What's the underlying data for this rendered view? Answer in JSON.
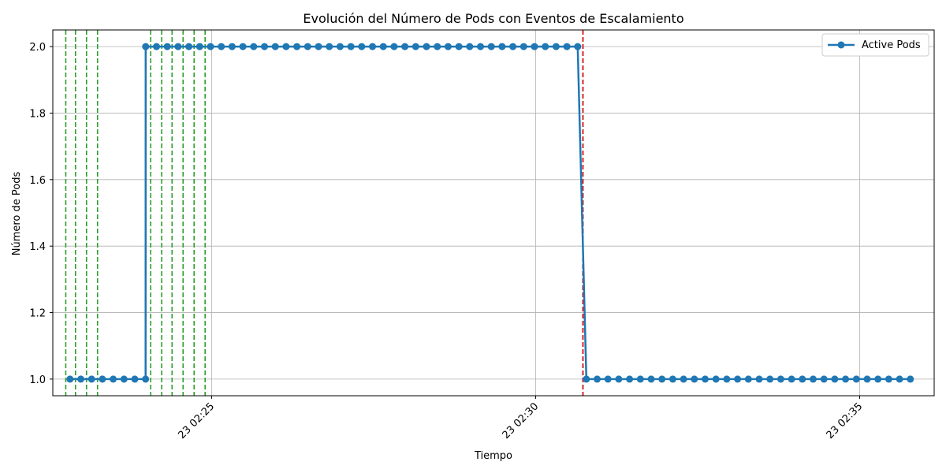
{
  "chart_data": {
    "type": "line",
    "title": "Evolución del Número de Pods con Eventos de Escalamiento",
    "xlabel": "Tiempo",
    "ylabel": "Número de Pods",
    "x_unit": "minutes after 23 02:20",
    "xlim": [
      2.55,
      16.15
    ],
    "ylim": [
      0.95,
      2.05
    ],
    "x_ticks": [
      {
        "value": 5,
        "label": "23 02:25"
      },
      {
        "value": 10,
        "label": "23 02:30"
      },
      {
        "value": 15,
        "label": "23 02:35"
      }
    ],
    "y_ticks": [
      {
        "value": 1.0,
        "label": "1.0"
      },
      {
        "value": 1.2,
        "label": "1.2"
      },
      {
        "value": 1.4,
        "label": "1.4"
      },
      {
        "value": 1.6,
        "label": "1.6"
      },
      {
        "value": 1.8,
        "label": "1.8"
      },
      {
        "value": 2.0,
        "label": "2.0"
      }
    ],
    "grid": true,
    "legend_position": "top-right",
    "series": [
      {
        "name": "Active Pods",
        "color": "#1f77b4",
        "segments": [
          {
            "x_start": 2.815,
            "count": 8,
            "value": 1
          },
          {
            "x_start": 3.983,
            "count": 41,
            "value": 2
          },
          {
            "x_start": 10.783,
            "count": 31,
            "value": 1
          }
        ]
      }
    ],
    "scale_up_events": {
      "color": "#2ca02c",
      "x": [
        2.75,
        2.9,
        3.07,
        3.24,
        4.06,
        4.23,
        4.39,
        4.56,
        4.73,
        4.9
      ]
    },
    "scale_down_events": {
      "color": "#d62728",
      "x": [
        10.73
      ]
    }
  }
}
